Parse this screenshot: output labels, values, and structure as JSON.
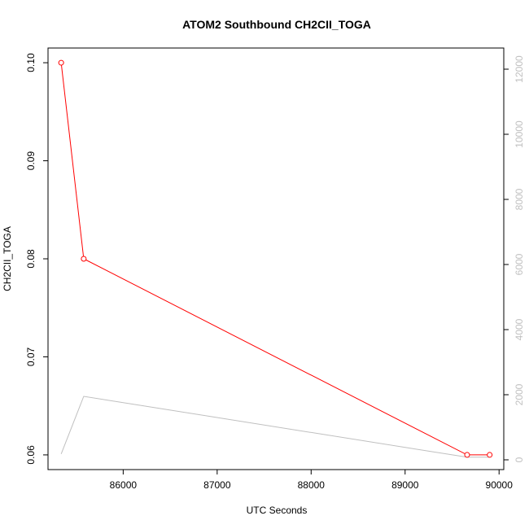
{
  "chart_data": {
    "type": "line",
    "title": "ATOM2 Southbound CH2CII_TOGA",
    "xlabel": "UTC Seconds",
    "ylabel": "CH2CII_TOGA",
    "xlim": [
      85200,
      90050
    ],
    "ylim": [
      0.0585,
      0.1015
    ],
    "y2lim": [
      -300,
      12650
    ],
    "x_ticks": [
      86000,
      87000,
      88000,
      89000,
      90000
    ],
    "y_ticks": [
      0.06,
      0.07,
      0.08,
      0.09,
      0.1
    ],
    "y_tick_labels": [
      "0.06",
      "0.07",
      "0.08",
      "0.09",
      "0.10"
    ],
    "y2_ticks": [
      0,
      2000,
      4000,
      6000,
      8000,
      10000,
      12000
    ],
    "series": [
      {
        "axis": "left",
        "color": "#ff0000",
        "markers": true,
        "x": [
          85340,
          85580,
          89660,
          89900
        ],
        "y": [
          0.1,
          0.08,
          0.06,
          0.06
        ]
      },
      {
        "axis": "right",
        "color": "#bfbfbf",
        "markers": false,
        "x": [
          85340,
          85580,
          89660,
          89900
        ],
        "y": [
          180,
          1950,
          80,
          80
        ]
      }
    ]
  }
}
